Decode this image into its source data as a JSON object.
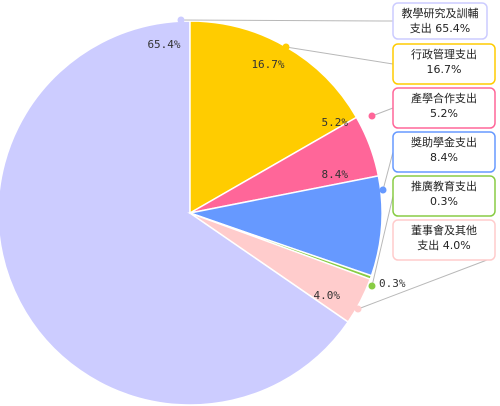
{
  "chart_data": {
    "type": "pie",
    "categories": [
      "教學研究及訓輔支出",
      "行政管理支出",
      "產學合作支出",
      "獎助學金支出",
      "推廣教育支出",
      "董事會及其他支出"
    ],
    "values": [
      65.4,
      16.7,
      5.2,
      8.4,
      0.3,
      4.0
    ],
    "value_labels": [
      "65.4%",
      "16.7%",
      "5.2%",
      "8.4%",
      "0.3%",
      "4.0%"
    ],
    "legend": [
      {
        "lines": [
          "教學研究及訓輔",
          "支出 65.4%"
        ]
      },
      {
        "lines": [
          "行政管理支出",
          "16.7%"
        ]
      },
      {
        "lines": [
          "產學合作支出",
          "5.2%"
        ]
      },
      {
        "lines": [
          "獎助學金支出",
          "8.4%"
        ]
      },
      {
        "lines": [
          "推廣教育支出",
          "0.3%"
        ]
      },
      {
        "lines": [
          "董事會及其他",
          "支出 4.0%"
        ]
      }
    ],
    "colors": [
      "#ccccff",
      "#ffcc00",
      "#ff6699",
      "#6699ff",
      "#88cc44",
      "#ffcccc"
    ],
    "legend_placement": "right"
  }
}
